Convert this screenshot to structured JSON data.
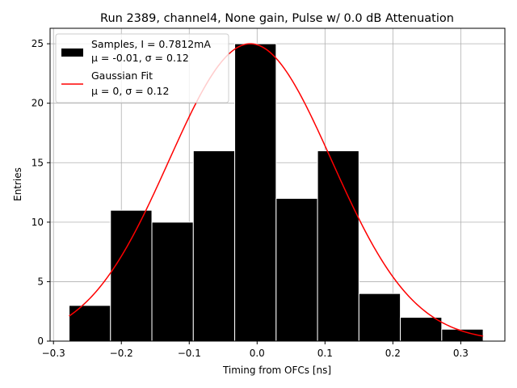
{
  "chart_data": {
    "type": "bar",
    "title": "Run 2389, channel4, None gain, Pulse w/ 0.0 dB Attenuation",
    "xlabel": "Timing from OFCs [ns]",
    "ylabel": "Entries",
    "xlim": [
      -0.305,
      0.365
    ],
    "ylim": [
      0,
      26.3
    ],
    "x_ticks": [
      -0.3,
      -0.2,
      -0.1,
      0.0,
      0.1,
      0.2,
      0.3
    ],
    "x_tick_labels": [
      "−0.3",
      "−0.2",
      "−0.1",
      "0.0",
      "0.1",
      "0.2",
      "0.3"
    ],
    "y_ticks": [
      0,
      5,
      10,
      15,
      20,
      25
    ],
    "y_tick_labels": [
      "0",
      "5",
      "10",
      "15",
      "20",
      "25"
    ],
    "grid": true,
    "legend_position": "upper-left",
    "histogram": {
      "name": "Samples, I = 0.7812mA",
      "stats_label": "μ = -0.01, σ = 0.12",
      "color": "#000000",
      "edge_color": "#ffffff",
      "bin_edges": [
        -0.277,
        -0.216,
        -0.155,
        -0.094,
        -0.033,
        0.028,
        0.089,
        0.15,
        0.211,
        0.272,
        0.333
      ],
      "values": [
        3,
        11,
        10,
        16,
        25,
        12,
        16,
        4,
        2,
        1
      ]
    },
    "fit": {
      "name": "Gaussian Fit",
      "stats_label": "μ = 0, σ = 0.12",
      "color": "#ff0000",
      "mu": -0.01,
      "sigma": 0.12,
      "amplitude": 25.0,
      "x_range": [
        -0.277,
        0.333
      ]
    }
  }
}
